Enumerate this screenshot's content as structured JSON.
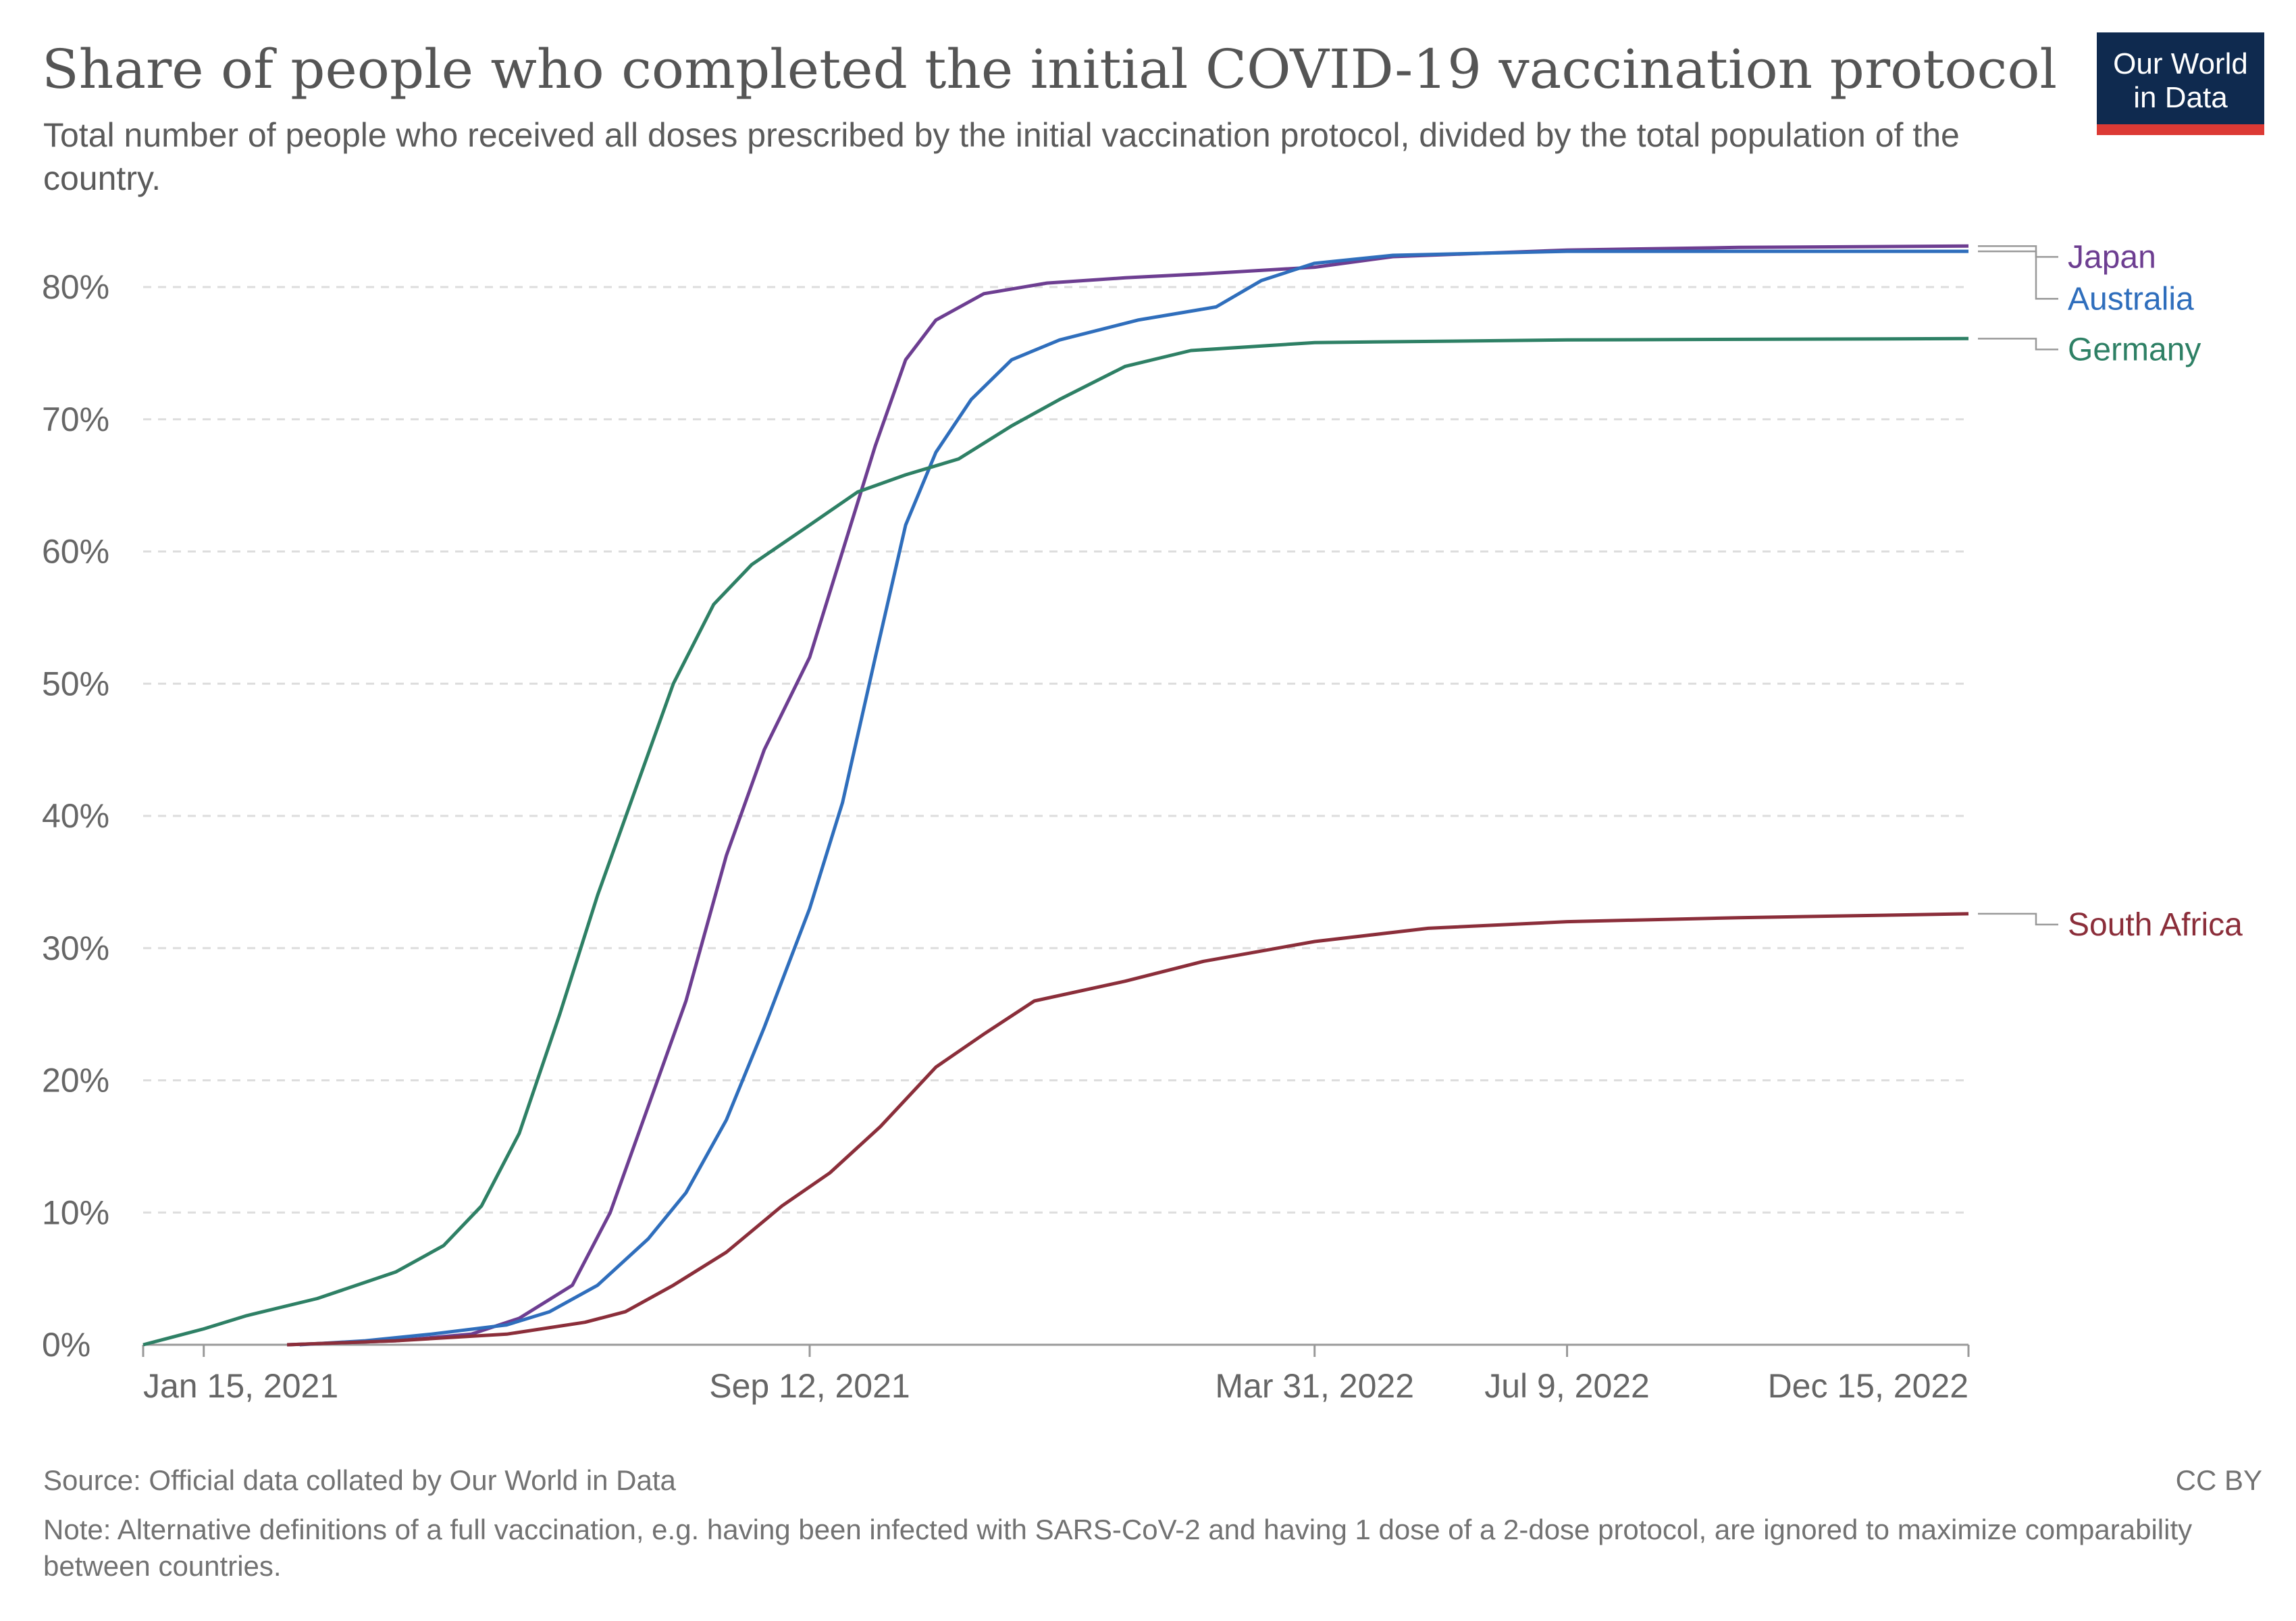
{
  "header": {
    "title": "Share of people who completed the initial COVID-19 vaccination protocol",
    "subtitle": "Total number of people who received all doses prescribed by the initial vaccination protocol, divided by the total population of the country."
  },
  "logo": {
    "line1": "Our World",
    "line2": "in Data",
    "colors": {
      "background": "#0f2a4f",
      "accent": "#dc3a35"
    }
  },
  "footer": {
    "source": "Source: Official data collated by Our World in Data",
    "note": "Note: Alternative definitions of a full vaccination, e.g. having been infected with SARS-CoV-2 and having 1 dose of a 2-dose protocol, are ignored to maximize comparability between countries.",
    "license": "CC BY"
  },
  "chart_data": {
    "type": "line",
    "x_type": "date",
    "x_range": [
      "2020-12-22",
      "2022-12-15"
    ],
    "ylim": [
      0,
      80
    ],
    "y_ticks": [
      0,
      10,
      20,
      30,
      40,
      50,
      60,
      70,
      80
    ],
    "y_tick_labels": [
      "0%",
      "10%",
      "20%",
      "30%",
      "40%",
      "50%",
      "60%",
      "70%",
      "80%"
    ],
    "x_ticks": [
      "2021-01-15",
      "2021-09-12",
      "2022-03-31",
      "2022-07-09",
      "2022-12-15"
    ],
    "x_tick_labels": [
      "Jan 15, 2021",
      "Sep 12, 2021",
      "Mar 31, 2022",
      "Jul 9, 2022",
      "Dec 15, 2022"
    ],
    "grid": true,
    "legend": "right-inline",
    "series": [
      {
        "name": "Japan",
        "color": "#6d3e91",
        "points": [
          [
            "2021-02-17",
            0
          ],
          [
            "2021-04-01",
            0.3
          ],
          [
            "2021-05-01",
            0.8
          ],
          [
            "2021-05-20",
            2
          ],
          [
            "2021-06-10",
            4.5
          ],
          [
            "2021-06-25",
            10
          ],
          [
            "2021-07-10",
            18
          ],
          [
            "2021-07-25",
            26
          ],
          [
            "2021-08-10",
            37
          ],
          [
            "2021-08-25",
            45
          ],
          [
            "2021-09-12",
            52
          ],
          [
            "2021-09-25",
            60
          ],
          [
            "2021-10-08",
            68
          ],
          [
            "2021-10-20",
            74.5
          ],
          [
            "2021-11-01",
            77.5
          ],
          [
            "2021-11-20",
            79.5
          ],
          [
            "2021-12-15",
            80.3
          ],
          [
            "2022-01-15",
            80.7
          ],
          [
            "2022-02-15",
            81
          ],
          [
            "2022-03-31",
            81.5
          ],
          [
            "2022-05-01",
            82.3
          ],
          [
            "2022-07-09",
            82.8
          ],
          [
            "2022-09-15",
            83
          ],
          [
            "2022-12-15",
            83.1
          ]
        ]
      },
      {
        "name": "Australia",
        "color": "#2f6ebc",
        "points": [
          [
            "2021-02-22",
            0
          ],
          [
            "2021-03-20",
            0.3
          ],
          [
            "2021-04-15",
            0.8
          ],
          [
            "2021-05-15",
            1.5
          ],
          [
            "2021-06-01",
            2.5
          ],
          [
            "2021-06-20",
            4.5
          ],
          [
            "2021-07-10",
            8
          ],
          [
            "2021-07-25",
            11.5
          ],
          [
            "2021-08-10",
            17
          ],
          [
            "2021-08-25",
            24
          ],
          [
            "2021-09-12",
            33
          ],
          [
            "2021-09-25",
            41
          ],
          [
            "2021-10-08",
            52
          ],
          [
            "2021-10-20",
            62
          ],
          [
            "2021-11-01",
            67.5
          ],
          [
            "2021-11-15",
            71.5
          ],
          [
            "2021-12-01",
            74.5
          ],
          [
            "2021-12-20",
            76
          ],
          [
            "2022-01-20",
            77.5
          ],
          [
            "2022-02-20",
            78.5
          ],
          [
            "2022-03-10",
            80.5
          ],
          [
            "2022-03-31",
            81.8
          ],
          [
            "2022-05-01",
            82.4
          ],
          [
            "2022-07-09",
            82.7
          ],
          [
            "2022-12-15",
            82.7
          ]
        ]
      },
      {
        "name": "Germany",
        "color": "#2e8065",
        "points": [
          [
            "2020-12-22",
            0
          ],
          [
            "2021-01-15",
            1.2
          ],
          [
            "2021-02-01",
            2.2
          ],
          [
            "2021-03-01",
            3.5
          ],
          [
            "2021-04-01",
            5.5
          ],
          [
            "2021-04-20",
            7.5
          ],
          [
            "2021-05-05",
            10.5
          ],
          [
            "2021-05-20",
            16
          ],
          [
            "2021-06-05",
            25
          ],
          [
            "2021-06-20",
            34
          ],
          [
            "2021-07-05",
            42
          ],
          [
            "2021-07-20",
            50
          ],
          [
            "2021-08-05",
            56
          ],
          [
            "2021-08-20",
            59
          ],
          [
            "2021-09-12",
            62
          ],
          [
            "2021-10-01",
            64.5
          ],
          [
            "2021-10-20",
            65.8
          ],
          [
            "2021-11-10",
            67
          ],
          [
            "2021-12-01",
            69.5
          ],
          [
            "2021-12-20",
            71.5
          ],
          [
            "2022-01-15",
            74
          ],
          [
            "2022-02-10",
            75.2
          ],
          [
            "2022-03-31",
            75.8
          ],
          [
            "2022-07-09",
            76
          ],
          [
            "2022-12-15",
            76.1
          ]
        ]
      },
      {
        "name": "South Africa",
        "color": "#8b2e3a",
        "points": [
          [
            "2021-02-17",
            0
          ],
          [
            "2021-04-01",
            0.3
          ],
          [
            "2021-05-15",
            0.8
          ],
          [
            "2021-06-15",
            1.7
          ],
          [
            "2021-07-01",
            2.5
          ],
          [
            "2021-07-20",
            4.5
          ],
          [
            "2021-08-10",
            7
          ],
          [
            "2021-09-01",
            10.5
          ],
          [
            "2021-09-20",
            13
          ],
          [
            "2021-10-10",
            16.5
          ],
          [
            "2021-11-01",
            21
          ],
          [
            "2021-11-20",
            23.5
          ],
          [
            "2021-12-10",
            26
          ],
          [
            "2022-01-15",
            27.5
          ],
          [
            "2022-02-15",
            29
          ],
          [
            "2022-03-31",
            30.5
          ],
          [
            "2022-05-15",
            31.5
          ],
          [
            "2022-07-09",
            32
          ],
          [
            "2022-09-15",
            32.3
          ],
          [
            "2022-12-15",
            32.6
          ]
        ]
      }
    ],
    "labels_order": [
      "Japan",
      "Australia",
      "Germany",
      "South Africa"
    ]
  }
}
